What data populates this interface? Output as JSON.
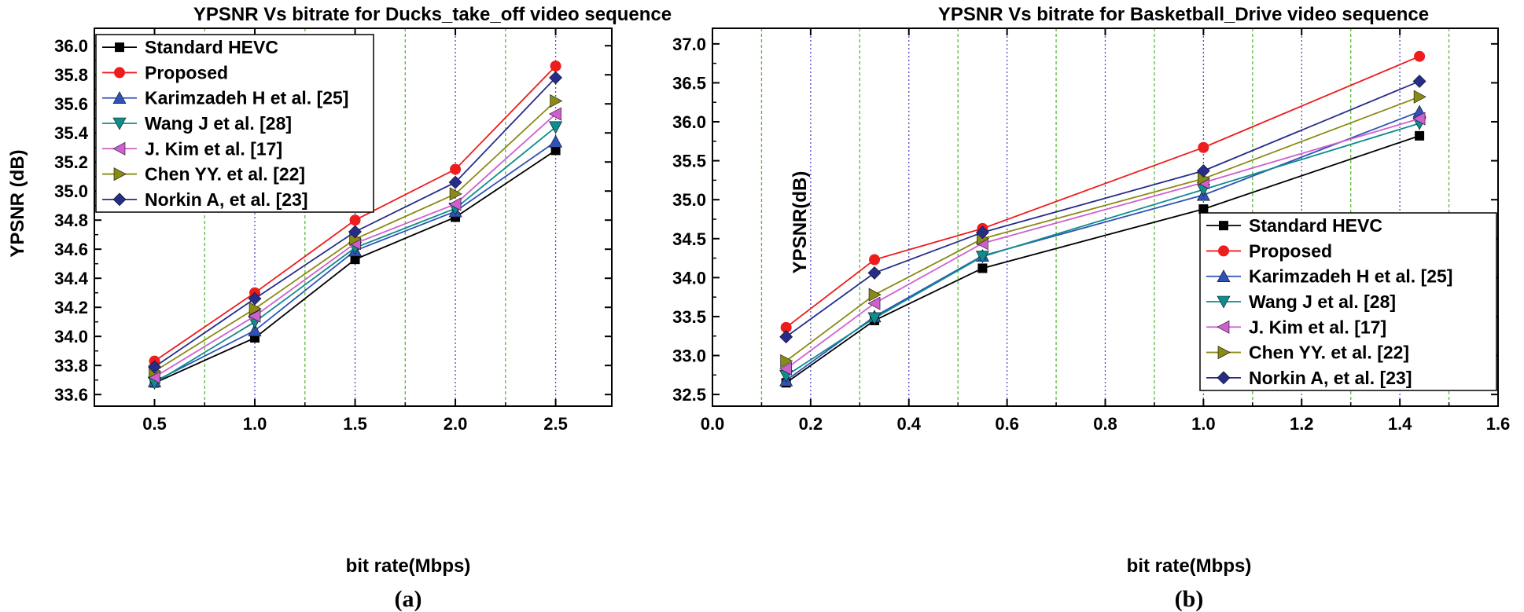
{
  "colors": {
    "Standard HEVC": "#000000",
    "Proposed": "#ee1c1c",
    "Karimzadeh H et al. [25]": "#2f52b8",
    "Wang J et al. [28]": "#0f8c8c",
    "J. Kim et al. [17]": "#cf5fcf",
    "Chen YY. et al. [22]": "#8a8a16",
    "Norkin A, et al. [23]": "#262c8a",
    "grid_blue": "#4848c8",
    "grid_green": "#5aba3a"
  },
  "chart_data": [
    {
      "type": "line",
      "title": "YPSNR Vs bitrate for Ducks_take_off video sequence",
      "xlabel": "bit rate(Mbps)",
      "ylabel": "YPSNR (dB)",
      "caption": "(a)",
      "xlim": [
        0.2,
        2.78
      ],
      "ylim": [
        33.52,
        36.12
      ],
      "xticks": [
        0.5,
        1.0,
        1.5,
        2.0,
        2.5
      ],
      "xtick_labels": [
        "0.5",
        "1.0",
        "1.5",
        "2.0",
        "2.5"
      ],
      "yticks": [
        33.6,
        33.8,
        34.0,
        34.2,
        34.4,
        34.6,
        34.8,
        35.0,
        35.2,
        35.4,
        35.6,
        35.8,
        36.0
      ],
      "ytick_labels": [
        "33.6",
        "33.8",
        "34.0",
        "34.2",
        "34.4",
        "34.6",
        "34.8",
        "35.0",
        "35.2",
        "35.4",
        "35.6",
        "35.8",
        "36.0"
      ],
      "grid_blue_x": [
        1.0,
        1.5,
        2.0,
        2.5
      ],
      "grid_green_x": [
        0.75,
        1.25,
        1.75,
        2.25
      ],
      "legend_position": "top-left",
      "x": [
        0.5,
        1.0,
        1.5,
        2.0,
        2.5
      ],
      "series": [
        {
          "name": "Standard HEVC",
          "marker": "square",
          "values": [
            33.68,
            33.99,
            34.53,
            34.82,
            35.28
          ]
        },
        {
          "name": "Proposed",
          "marker": "circle",
          "values": [
            33.83,
            34.3,
            34.8,
            35.15,
            35.86
          ]
        },
        {
          "name": "Karimzadeh H et al. [25]",
          "marker": "triangle-up",
          "values": [
            33.69,
            34.04,
            34.59,
            34.86,
            35.34
          ]
        },
        {
          "name": "Wang J et al. [28]",
          "marker": "triangle-down",
          "values": [
            33.68,
            34.1,
            34.61,
            34.88,
            35.44
          ]
        },
        {
          "name": "J. Kim et al. [17]",
          "marker": "triangle-left",
          "values": [
            33.72,
            34.14,
            34.64,
            34.91,
            35.53
          ]
        },
        {
          "name": "Chen YY. et al. [22]",
          "marker": "triangle-right",
          "values": [
            33.76,
            34.19,
            34.67,
            34.98,
            35.62
          ]
        },
        {
          "name": "Norkin A, et al. [23]",
          "marker": "diamond",
          "values": [
            33.79,
            34.26,
            34.72,
            35.06,
            35.78
          ]
        }
      ]
    },
    {
      "type": "line",
      "title": "YPSNR Vs bitrate for Basketball_Drive video sequence",
      "xlabel": "bit rate(Mbps)",
      "ylabel": "YPSNR(dB)",
      "caption": "(b)",
      "xlim": [
        0.0,
        1.6
      ],
      "ylim": [
        32.35,
        37.2
      ],
      "xticks": [
        0.0,
        0.2,
        0.4,
        0.6,
        0.8,
        1.0,
        1.2,
        1.4,
        1.6
      ],
      "xtick_labels": [
        "0.0",
        "0.2",
        "0.4",
        "0.6",
        "0.8",
        "1.0",
        "1.2",
        "1.4",
        "1.6"
      ],
      "yticks": [
        32.5,
        33.0,
        33.5,
        34.0,
        34.5,
        35.0,
        35.5,
        36.0,
        36.5,
        37.0
      ],
      "ytick_labels": [
        "32.5",
        "33.0",
        "33.5",
        "34.0",
        "34.5",
        "35.0",
        "35.5",
        "36.0",
        "36.5",
        "37.0"
      ],
      "grid_blue_x": [
        0.2,
        0.4,
        0.6,
        0.8,
        1.0,
        1.2,
        1.4
      ],
      "grid_green_x": [
        0.1,
        0.3,
        0.5,
        0.7,
        0.9,
        1.1,
        1.3,
        1.5
      ],
      "legend_position": "bottom-right",
      "x": [
        0.15,
        0.33,
        0.55,
        1.0,
        1.44
      ],
      "series": [
        {
          "name": "Standard HEVC",
          "marker": "square",
          "values": [
            32.65,
            33.45,
            34.12,
            34.88,
            35.82
          ]
        },
        {
          "name": "Proposed",
          "marker": "circle",
          "values": [
            33.36,
            34.23,
            34.63,
            35.67,
            36.84
          ]
        },
        {
          "name": "Karimzadeh H et al. [25]",
          "marker": "triangle-up",
          "values": [
            32.68,
            33.5,
            34.28,
            35.06,
            36.13
          ]
        },
        {
          "name": "Wang J et al. [28]",
          "marker": "triangle-down",
          "values": [
            32.74,
            33.48,
            34.27,
            35.13,
            35.98
          ]
        },
        {
          "name": "J. Kim et al. [17]",
          "marker": "triangle-left",
          "values": [
            32.83,
            33.67,
            34.44,
            35.22,
            36.04
          ]
        },
        {
          "name": "Chen YY. et al. [22]",
          "marker": "triangle-right",
          "values": [
            32.93,
            33.78,
            34.5,
            35.27,
            36.32
          ]
        },
        {
          "name": "Norkin A, et al. [23]",
          "marker": "diamond",
          "values": [
            33.24,
            34.06,
            34.58,
            35.37,
            36.52
          ]
        }
      ]
    }
  ]
}
